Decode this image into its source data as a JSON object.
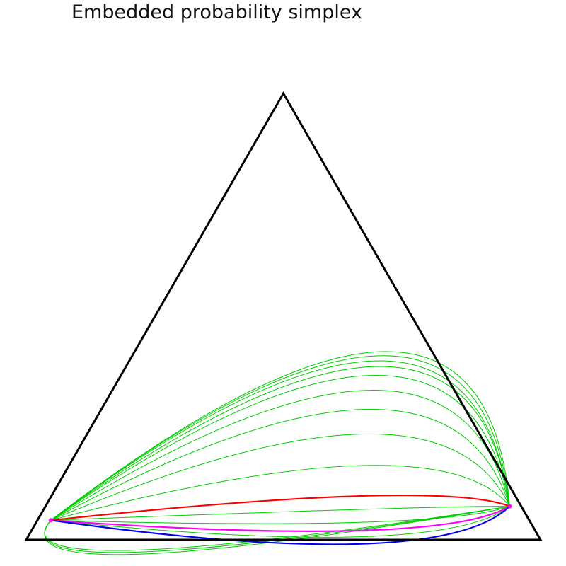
{
  "chart_data": {
    "type": "line",
    "title": "Embedded probability simplex",
    "grid": false,
    "legend": "none",
    "colors": {
      "frame": "#000000",
      "family": "#00cc00",
      "highlight_red": "#ff0000",
      "highlight_magenta": "#ff00ff",
      "highlight_blue": "#0000ee",
      "endpoint_marker": "#ff00ff"
    },
    "vertices": {
      "left": [
        0,
        0
      ],
      "right": [
        1,
        0
      ],
      "top": [
        0.5,
        0.866
      ]
    },
    "endpoints": {
      "start": [
        0.048,
        0.038
      ],
      "end": [
        0.94,
        0.065
      ]
    },
    "curves": [
      {
        "color_key": "family",
        "style": "thin",
        "peak": [
          0.63,
          0.365
        ]
      },
      {
        "color_key": "family",
        "style": "thin",
        "peak": [
          0.625,
          0.357
        ]
      },
      {
        "color_key": "family",
        "style": "thin",
        "peak": [
          0.62,
          0.347
        ]
      },
      {
        "color_key": "family",
        "style": "thin",
        "peak": [
          0.62,
          0.336
        ]
      },
      {
        "color_key": "family",
        "style": "thin",
        "peak": [
          0.615,
          0.319
        ]
      },
      {
        "color_key": "family",
        "style": "thin",
        "peak": [
          0.61,
          0.29
        ]
      },
      {
        "color_key": "family",
        "style": "thin",
        "peak": [
          0.605,
          0.253
        ]
      },
      {
        "color_key": "family",
        "style": "thin",
        "peak": [
          0.6,
          0.205
        ]
      },
      {
        "color_key": "family",
        "style": "thin",
        "peak": [
          0.6,
          0.144
        ]
      },
      {
        "color_key": "highlight_red",
        "style": "thick",
        "peak": [
          0.6,
          0.085
        ]
      },
      {
        "color_key": "family",
        "style": "thin",
        "peak": [
          0.6,
          0.059
        ]
      },
      {
        "color_key": "family",
        "style": "thin",
        "peak": [
          0.6,
          0.034
        ]
      },
      {
        "color_key": "highlight_magenta",
        "style": "thick",
        "peak": [
          0.6,
          0.018
        ]
      },
      {
        "color_key": "family",
        "style": "thin",
        "peak": [
          0.6,
          0.006
        ]
      },
      {
        "color_key": "highlight_blue",
        "style": "thick",
        "peak": [
          0.6,
          -0.008
        ]
      },
      {
        "color_key": "family",
        "style": "thin",
        "peak": [
          0.3,
          -0.02
        ]
      },
      {
        "color_key": "family",
        "style": "thin",
        "peak": [
          0.3,
          -0.024
        ]
      },
      {
        "color_key": "family",
        "style": "thin",
        "peak": [
          0.3,
          -0.028
        ]
      }
    ]
  }
}
